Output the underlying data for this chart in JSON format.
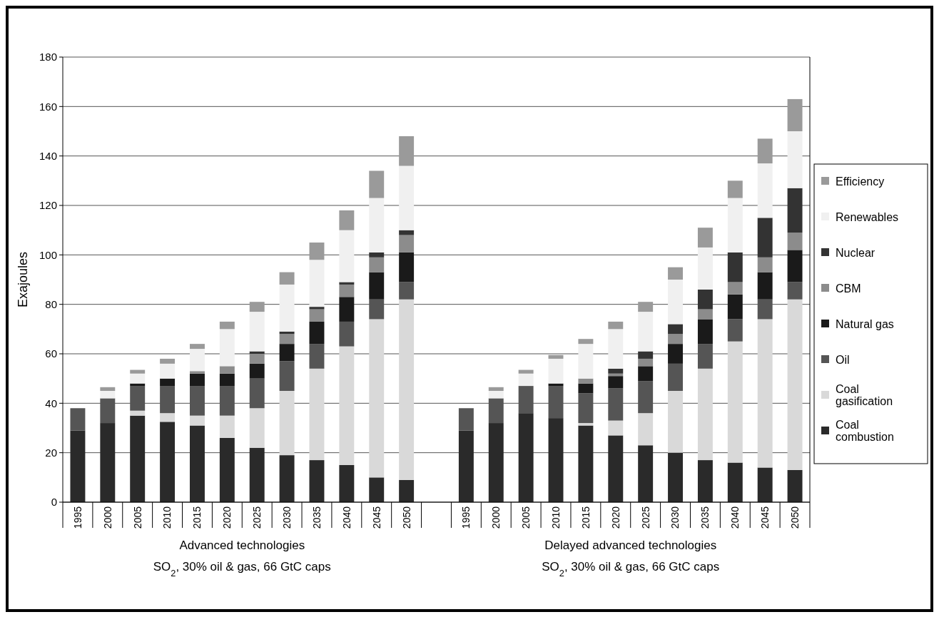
{
  "chart_data": {
    "type": "bar",
    "stacked": true,
    "ylabel": "Exajoules",
    "categories": [
      "1995",
      "2000",
      "2005",
      "2010",
      "2015",
      "2020",
      "2025",
      "2030",
      "2035",
      "2040",
      "2045",
      "2050",
      null,
      "1995",
      "2000",
      "2005",
      "2010",
      "2015",
      "2020",
      "2025",
      "2030",
      "2035",
      "2040",
      "2045",
      "2050"
    ],
    "series": [
      {
        "name": "Coal combustion",
        "color": "#2a2a2a",
        "values": [
          29,
          32,
          35,
          32.5,
          31,
          26,
          22,
          19,
          17,
          15,
          10,
          9,
          null,
          29,
          32,
          36,
          34,
          31,
          27,
          23,
          20,
          17,
          16,
          14,
          13
        ]
      },
      {
        "name": "Coal gasification",
        "color": "#d9d9d9",
        "values": [
          0,
          0,
          2,
          3.5,
          4,
          9,
          16,
          26,
          37,
          48,
          64,
          73,
          null,
          0,
          0,
          0,
          0,
          1,
          6,
          13,
          25,
          37,
          49,
          60,
          69
        ]
      },
      {
        "name": "Oil",
        "color": "#555555",
        "values": [
          9,
          10,
          10,
          11,
          12,
          12,
          12,
          12,
          10,
          10,
          8,
          7,
          null,
          9,
          10,
          11,
          13,
          12,
          13,
          13,
          11,
          10,
          9,
          8,
          7
        ]
      },
      {
        "name": "Natural gas",
        "color": "#1a1a1a",
        "values": [
          0,
          0,
          1,
          3,
          5,
          5,
          6,
          7,
          9,
          10,
          11,
          12,
          null,
          0,
          0,
          0,
          1,
          4,
          5,
          6,
          8,
          10,
          10,
          11,
          13
        ]
      },
      {
        "name": "CBM",
        "color": "#8c8c8c",
        "values": [
          0,
          0,
          0,
          0,
          1,
          3,
          4,
          4,
          5,
          5,
          6,
          7,
          null,
          0,
          0,
          0,
          0,
          2,
          1,
          3,
          4,
          4,
          5,
          6,
          7
        ]
      },
      {
        "name": "Nuclear",
        "color": "#333333",
        "values": [
          0,
          0,
          0,
          0,
          0,
          0,
          1,
          1,
          1,
          1,
          2,
          2,
          null,
          0,
          0,
          0,
          0,
          0,
          2,
          3,
          4,
          8,
          12,
          16,
          18
        ]
      },
      {
        "name": "Renewables",
        "color": "#f0f0f0",
        "values": [
          0,
          3,
          4,
          6,
          9,
          15,
          16,
          19,
          19,
          21,
          22,
          26,
          null,
          0,
          3,
          5,
          10,
          14,
          16,
          16,
          18,
          17,
          22,
          22,
          23
        ]
      },
      {
        "name": "Efficiency",
        "color": "#9a9a9a",
        "values": [
          0,
          1.5,
          1.5,
          2,
          2,
          3,
          4,
          5,
          7,
          8,
          11,
          12,
          null,
          0,
          1.5,
          1.5,
          1.5,
          2,
          3,
          4,
          5,
          8,
          7,
          10,
          13
        ]
      }
    ],
    "ylim": [
      0,
      180
    ],
    "yticks": [
      0,
      20,
      40,
      60,
      80,
      100,
      120,
      140,
      160,
      180
    ],
    "grid": "y",
    "legend": "right",
    "annotations": [
      "Advanced technologies",
      "SO$_{2}$, 30% oil & gas, 66 GtC caps",
      "Delayed advanced technologies",
      "SO$_{2}$, 30% oil & gas, 66 GtC caps"
    ]
  }
}
